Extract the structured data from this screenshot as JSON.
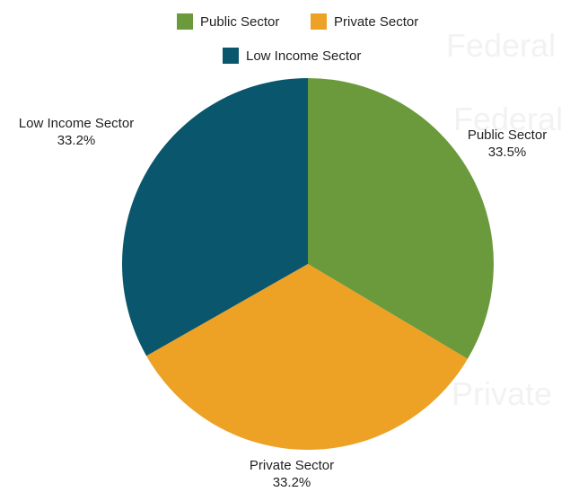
{
  "chart_data": {
    "type": "pie",
    "title": "",
    "legend_placement": "top",
    "slices": [
      {
        "label": "Public Sector",
        "value": 33.5,
        "display": "33.5%",
        "color": "#6a9a3c"
      },
      {
        "label": "Private Sector",
        "value": 33.2,
        "display": "33.2%",
        "color": "#eda125"
      },
      {
        "label": "Low Income Sector",
        "value": 33.2,
        "display": "33.2%",
        "color": "#0a566d"
      }
    ]
  },
  "watermark": [
    "Federal",
    "Federal",
    "Private"
  ]
}
